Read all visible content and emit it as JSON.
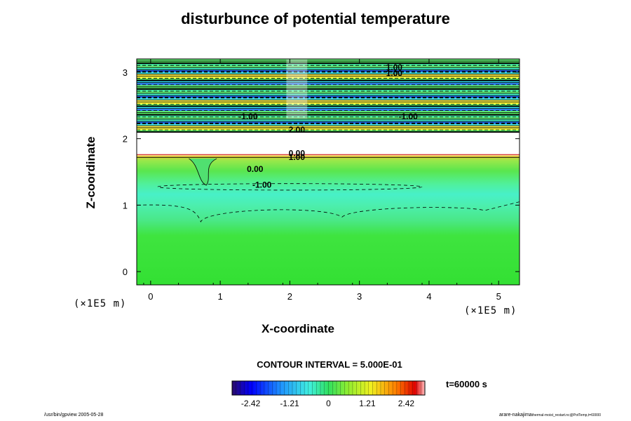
{
  "chart_data": {
    "type": "heatmap",
    "title": "disturbunce of potential temperature",
    "xlabel": "X-coordinate",
    "ylabel": "Z-coordinate",
    "x_unit": "(×1E5 m)",
    "y_unit": "(×1E5 m)",
    "xlim": [
      -0.2,
      5.3
    ],
    "ylim": [
      -0.2,
      3.2
    ],
    "x_ticks": [
      "0",
      "1",
      "2",
      "3",
      "4",
      "5"
    ],
    "y_ticks": [
      "0",
      "1",
      "2",
      "3"
    ],
    "contour_interval_text": "CONTOUR INTERVAL = 5.000E-01",
    "time_text": "t=60000 s",
    "colorbar": {
      "range": [
        -3.0,
        3.0
      ],
      "tick_labels": [
        "-2.42",
        "-1.21",
        "0",
        "1.21",
        "2.42"
      ],
      "tick_values": [
        -2.42,
        -1.21,
        0,
        1.21,
        2.42
      ]
    },
    "contour_labels": [
      {
        "text": "0.00",
        "x": 1.5,
        "z": 1.5
      },
      {
        "text": "-1.00",
        "x": 1.6,
        "z": 1.26
      },
      {
        "text": "1.00",
        "x": 2.1,
        "z": 1.68
      },
      {
        "text": "0.00",
        "x": 2.1,
        "z": 1.74
      },
      {
        "text": "-1.00",
        "x": 1.4,
        "z": 2.29
      },
      {
        "text": "-1.00",
        "x": 3.7,
        "z": 2.29
      },
      {
        "text": "2.00",
        "x": 2.1,
        "z": 2.09
      },
      {
        "text": "1.00",
        "x": 3.5,
        "z": 3.03
      },
      {
        "text": "1.00",
        "x": 3.5,
        "z": 2.94
      }
    ],
    "regions": {
      "lower_layer_value": 0.0,
      "lower_layer_top_z": 1.75,
      "cold_band_value": -1.0,
      "cold_band_z": [
        1.1,
        1.45
      ],
      "blank_band_z": [
        1.75,
        2.1
      ],
      "upper_layer_z": [
        2.1,
        3.2
      ]
    }
  },
  "footer": {
    "left": "/usr/bin/gpview 2005-05-28",
    "right_main": "arare-nakajima",
    "right_small": "thermal-moist_restart.nc@PotTemp,t=60000"
  }
}
